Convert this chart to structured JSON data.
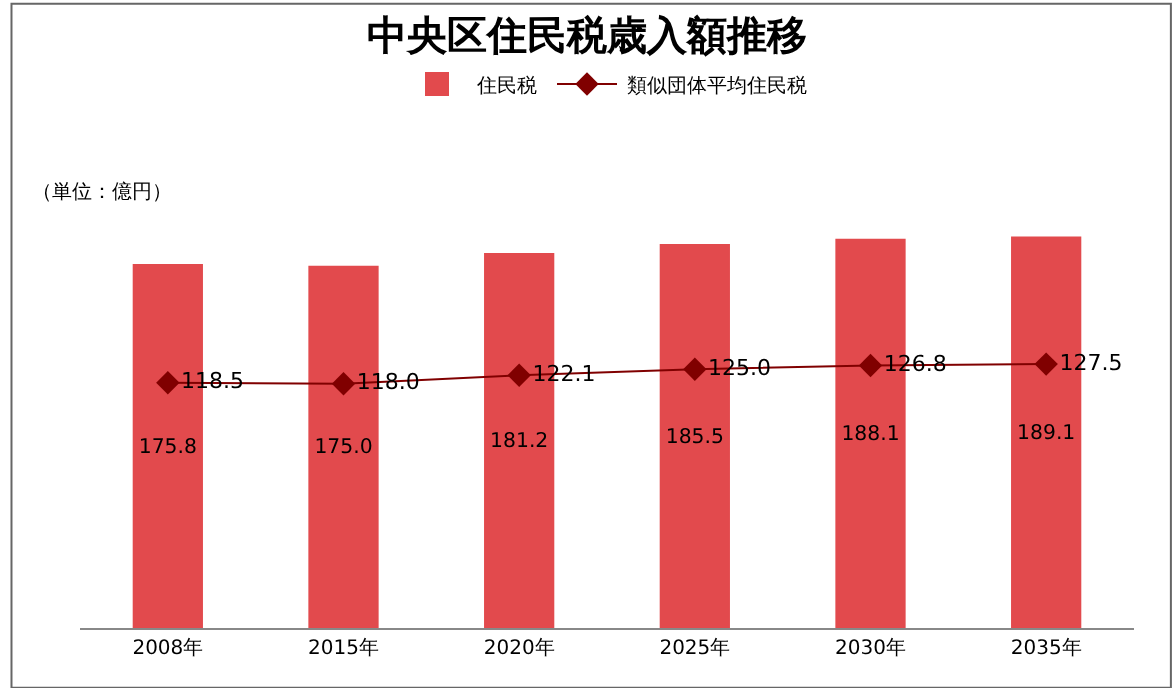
{
  "chart_data": {
    "type": "bar",
    "title": "中央区住民税歳入額推移",
    "annotations": [
      "（単位：億円）"
    ],
    "categories": [
      "2008年",
      "2015年",
      "2020年",
      "2025年",
      "2030年",
      "2035年"
    ],
    "series": [
      {
        "name": "住民税",
        "color": "#e24a4d",
        "values": [
          175.8,
          175.0,
          181.2,
          185.5,
          188.1,
          189.1
        ],
        "value_labels": [
          "175.8",
          "175.0",
          "181.2",
          "185.5",
          "188.1",
          "189.1"
        ]
      },
      {
        "name": "類似団体平均住民税",
        "type": "line",
        "color": "#800000",
        "values": [
          118.5,
          118.0,
          122.1,
          125.0,
          126.8,
          127.5
        ],
        "value_labels": [
          "118.5",
          "118.0",
          "122.1",
          "125.0",
          "126.8",
          "127.5"
        ]
      }
    ],
    "tick_labels": "x",
    "legend": "top",
    "marker": "diamond",
    "line_style": "solid"
  }
}
